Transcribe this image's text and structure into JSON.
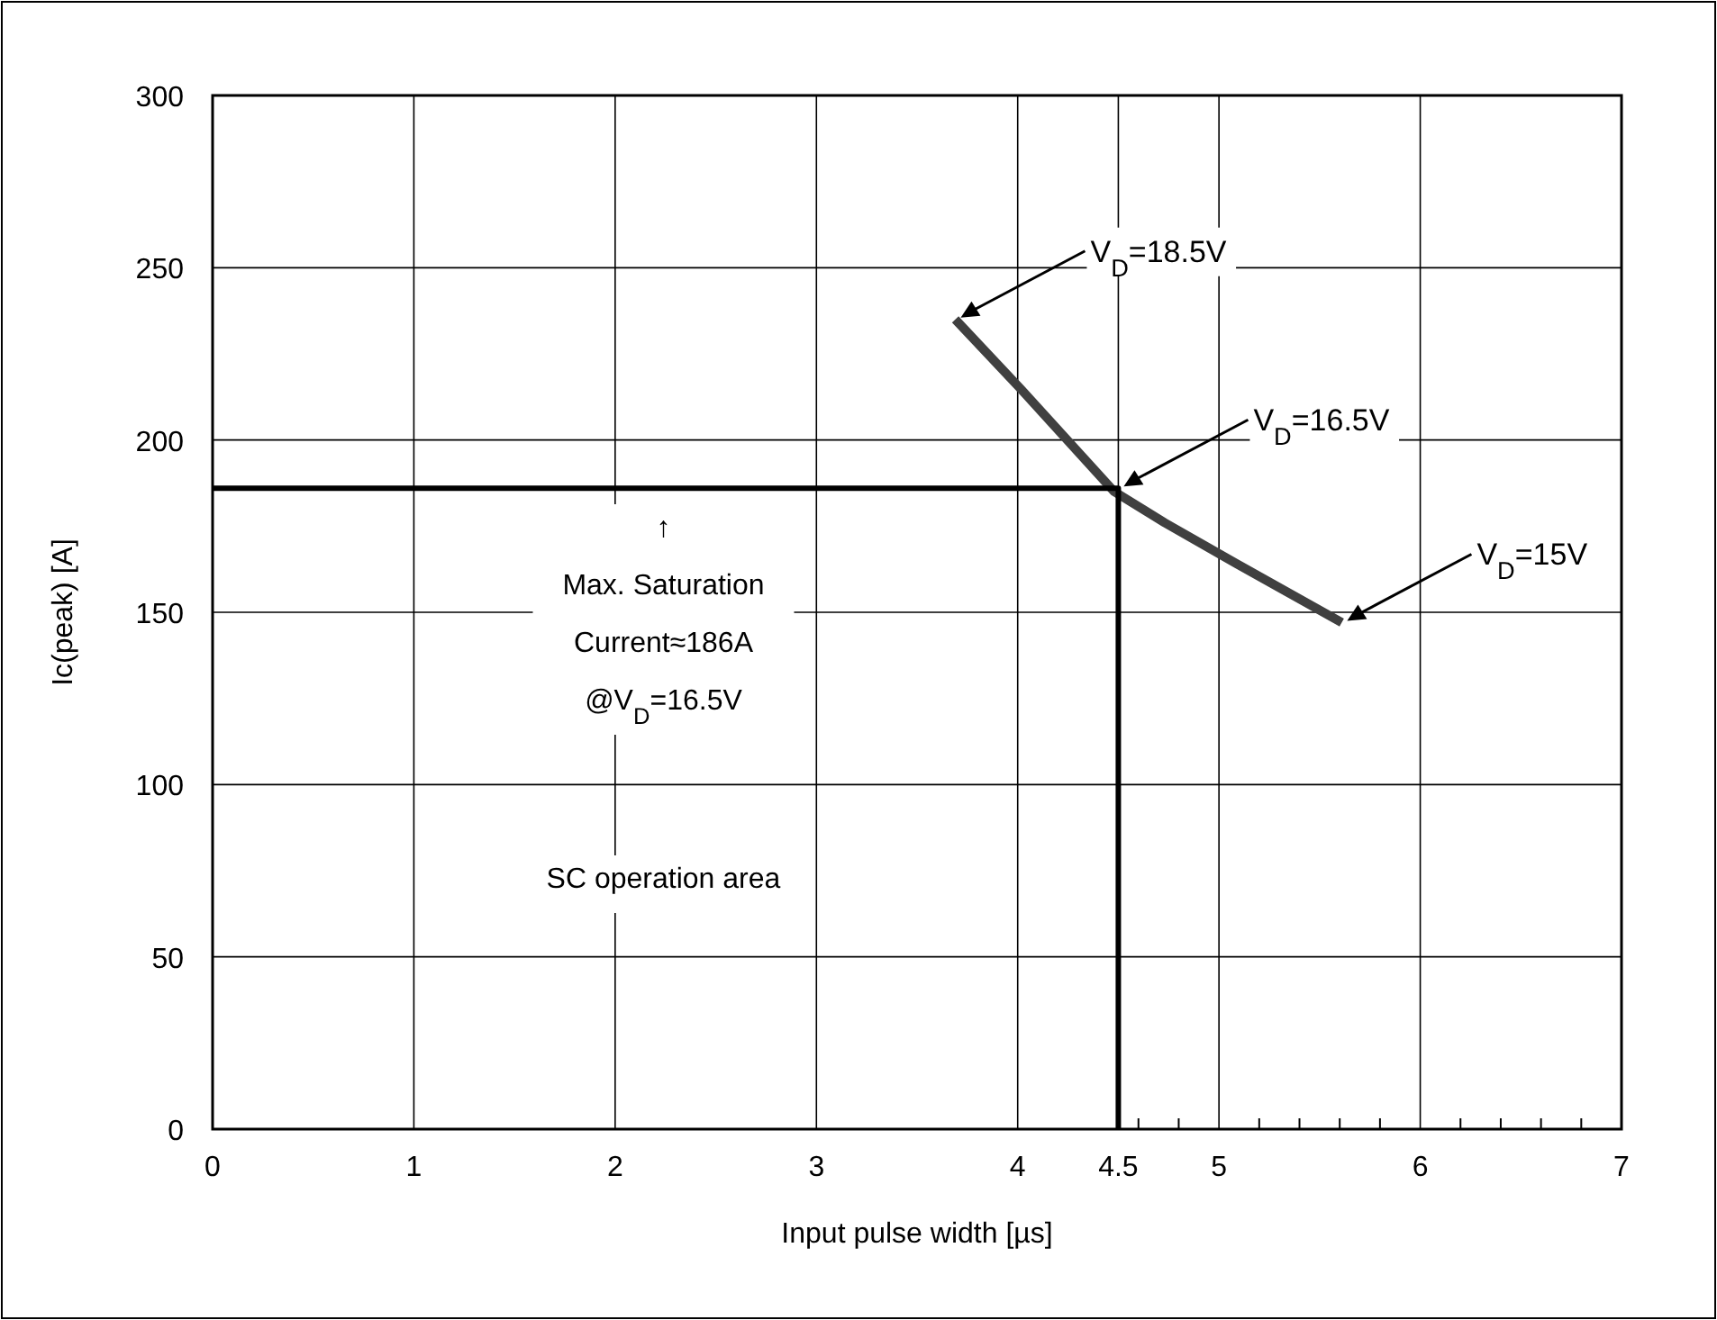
{
  "chart_data": {
    "type": "line",
    "xlabel": "Input pulse width [µs]",
    "ylabel": "Ic(peak) [A]",
    "xlim": [
      0,
      7
    ],
    "ylim": [
      0,
      300
    ],
    "xticks": [
      0,
      1,
      2,
      3,
      4,
      {
        "value": 4.5,
        "label": "4.5"
      },
      5,
      6,
      7,
      {
        "value": 4.6,
        "label": null
      },
      {
        "value": 4.8,
        "label": null
      },
      {
        "value": 5.2,
        "label": null
      },
      {
        "value": 5.4,
        "label": null
      },
      {
        "value": 5.6,
        "label": null
      },
      {
        "value": 5.8,
        "label": null
      },
      {
        "value": 6.2,
        "label": null
      },
      {
        "value": 6.4,
        "label": null
      },
      {
        "value": 6.6,
        "label": null
      },
      {
        "value": 6.8,
        "label": null
      }
    ],
    "yticks": [
      0,
      50,
      100,
      150,
      200,
      250,
      300
    ],
    "grid": true,
    "marker": "none",
    "line_style": "solid",
    "series": [
      {
        "color": "#404040",
        "x": [
          3.69,
          4.02,
          4.48,
          4.73,
          5.09,
          5.61
        ],
        "values": [
          235,
          214.5,
          185,
          176,
          164,
          147
        ]
      },
      {
        "color": "#000000",
        "x": [
          0,
          4.5,
          4.5
        ],
        "values": [
          186,
          186,
          0
        ]
      }
    ],
    "annotations": [
      {
        "text": "V$_{D}$=18.5V",
        "x": 3.69,
        "y": 235
      },
      {
        "text": "V$_{D}$=16.5V",
        "x": 4.5,
        "y": 186
      },
      {
        "text": "V$_{D}$=15V",
        "x": 5.61,
        "y": 147
      },
      "↑\nMax. Saturation\nCurrent≈186A\n@V$_{D}$=16.5V",
      "SC operation area"
    ]
  }
}
